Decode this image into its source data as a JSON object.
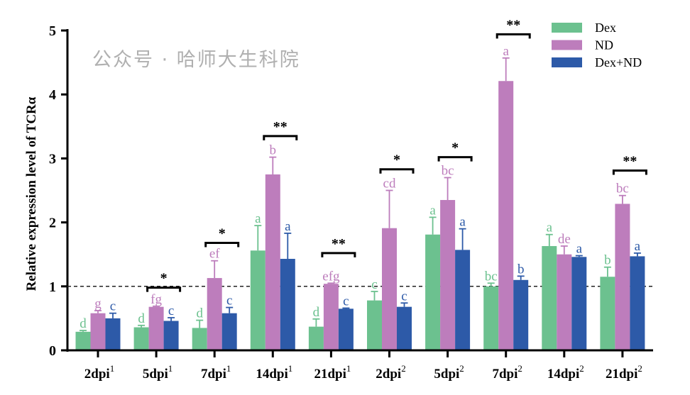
{
  "chart_data": {
    "type": "bar",
    "title": "",
    "xlabel": "",
    "ylabel": "Relative expression level of TCRα",
    "ylim": [
      0,
      5
    ],
    "yticks": [
      0,
      1,
      2,
      3,
      4,
      5
    ],
    "reference_line": 1,
    "legend_position": "top-right",
    "categories": [
      {
        "label": "2dpi",
        "sup": "1"
      },
      {
        "label": "5dpi",
        "sup": "1"
      },
      {
        "label": "7dpi",
        "sup": "1"
      },
      {
        "label": "14dpi",
        "sup": "1"
      },
      {
        "label": "21dpi",
        "sup": "1"
      },
      {
        "label": "2dpi",
        "sup": "2"
      },
      {
        "label": "5dpi",
        "sup": "2"
      },
      {
        "label": "7dpi",
        "sup": "2"
      },
      {
        "label": "14dpi",
        "sup": "2"
      },
      {
        "label": "21dpi",
        "sup": "2"
      }
    ],
    "series": [
      {
        "name": "Dex",
        "color": "#6cc18f",
        "values": [
          0.29,
          0.36,
          0.35,
          1.56,
          0.37,
          0.78,
          1.81,
          1.0,
          1.63,
          1.15
        ],
        "error_top": [
          0.31,
          0.39,
          0.47,
          1.95,
          0.49,
          0.92,
          2.08,
          1.05,
          1.81,
          1.3
        ],
        "letters": [
          "d",
          "d",
          "d",
          "a",
          "d",
          "c",
          "a",
          "bc",
          "a",
          "b"
        ]
      },
      {
        "name": "ND",
        "color": "#bd7dbc",
        "values": [
          0.58,
          0.68,
          1.13,
          2.75,
          1.04,
          1.91,
          2.35,
          4.21,
          1.5,
          2.29
        ],
        "error_top": [
          0.62,
          0.69,
          1.4,
          3.02,
          1.05,
          2.5,
          2.7,
          4.57,
          1.63,
          2.42
        ],
        "letters": [
          "g",
          "fg",
          "ef",
          "b",
          "efg",
          "cd",
          "bc",
          "a",
          "de",
          "bc"
        ]
      },
      {
        "name": "Dex+ND",
        "color": "#2d5aa8",
        "values": [
          0.5,
          0.46,
          0.58,
          1.43,
          0.65,
          0.68,
          1.57,
          1.1,
          1.46,
          1.47
        ],
        "error_top": [
          0.58,
          0.51,
          0.67,
          1.83,
          0.66,
          0.74,
          1.9,
          1.16,
          1.48,
          1.52
        ],
        "letters": [
          "c",
          "c",
          "c",
          "a",
          "c",
          "c",
          "a",
          "b",
          "a",
          "a"
        ]
      }
    ],
    "significance": [
      {
        "group": 1,
        "mark": "*",
        "level": 0.98
      },
      {
        "group": 2,
        "mark": "*",
        "level": 1.68
      },
      {
        "group": 3,
        "mark": "**",
        "level": 3.35
      },
      {
        "group": 4,
        "mark": "**",
        "level": 1.52
      },
      {
        "group": 5,
        "mark": "*",
        "level": 2.83
      },
      {
        "group": 6,
        "mark": "*",
        "level": 3.02
      },
      {
        "group": 7,
        "mark": "**",
        "level": 4.94
      },
      {
        "group": 9,
        "mark": "**",
        "level": 2.81
      }
    ]
  },
  "watermark": "公众号 · 哈师大生科院"
}
